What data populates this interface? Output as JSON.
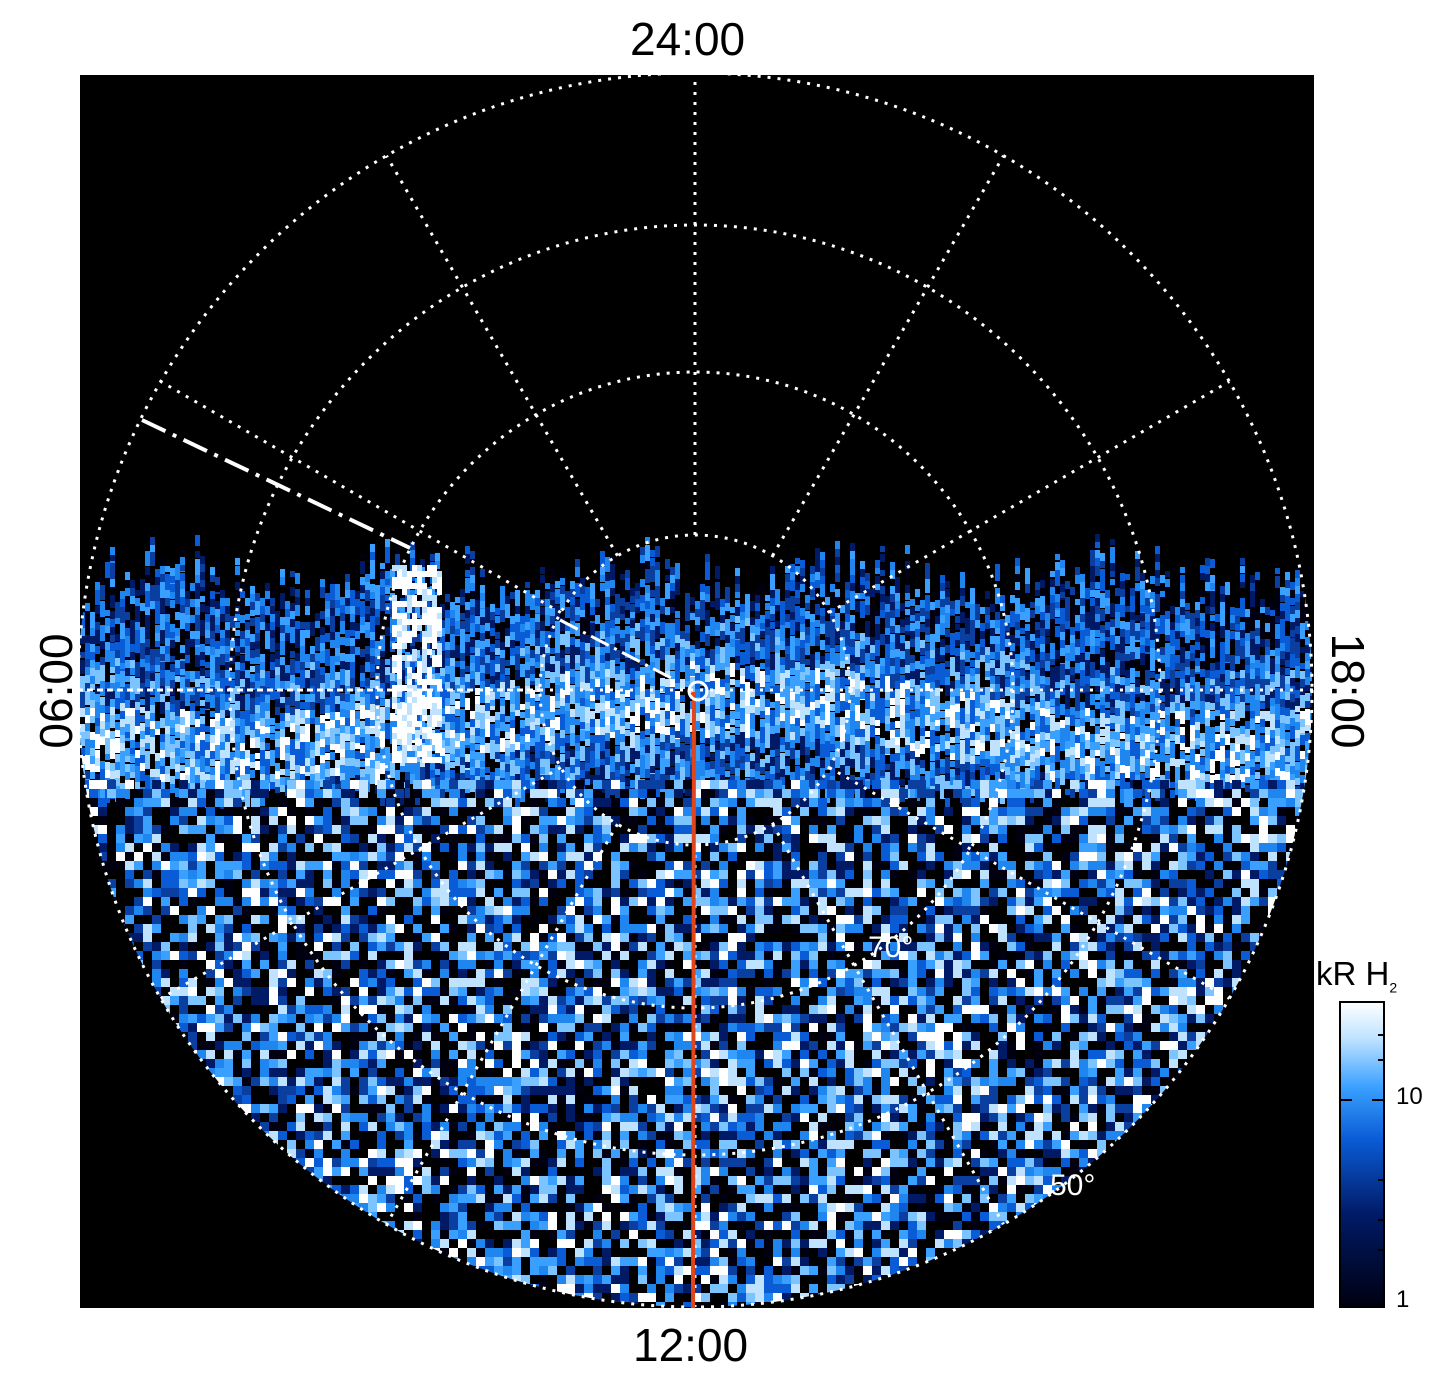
{
  "local_time_labels": {
    "top": "24:00",
    "bottom": "12:00",
    "left": "06:00",
    "right": "18:00"
  },
  "latitude_labels": [
    "70°",
    "50°"
  ],
  "colorbar": {
    "title": "kR H",
    "title_subscript": "2",
    "ticks": [
      "10",
      "1"
    ],
    "scale": "log",
    "colors": [
      "#000010",
      "#001a66",
      "#0a5cd6",
      "#3aa0ff",
      "#bfe3ff",
      "#ffffff"
    ]
  },
  "colors": {
    "background": "#000000",
    "grid": "#ffffff",
    "meridian_line": "#e0461c"
  }
}
